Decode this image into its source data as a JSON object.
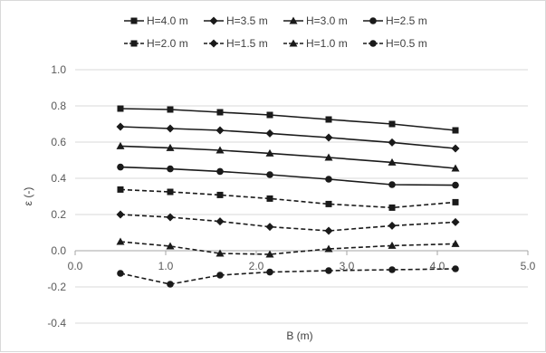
{
  "chart_data": {
    "type": "line",
    "title": "",
    "xlabel": "B (m)",
    "ylabel": "ε (-)",
    "xlim": [
      0,
      5
    ],
    "ylim": [
      -0.4,
      1.0
    ],
    "xticks": [
      0,
      1,
      2,
      3,
      4,
      5
    ],
    "xtick_labels": [
      "0.0",
      "1.0",
      "2.0",
      "3.0",
      "4.0",
      "5.0"
    ],
    "yticks": [
      -0.4,
      -0.2,
      0.0,
      0.2,
      0.4,
      0.6,
      0.8,
      1.0
    ],
    "ytick_labels": [
      "-0.4",
      "-0.2",
      "0.0",
      "0.2",
      "0.4",
      "0.6",
      "0.8",
      "1.0"
    ],
    "grid": true,
    "legend": "top",
    "x": [
      0.5,
      1.05,
      1.6,
      2.15,
      2.8,
      3.5,
      4.2
    ],
    "series": [
      {
        "name": "H=4.0 m",
        "marker": "square",
        "dash": "solid",
        "values": [
          0.785,
          0.78,
          0.765,
          0.75,
          0.725,
          0.7,
          0.665
        ]
      },
      {
        "name": "H=3.5 m",
        "marker": "diamond",
        "dash": "solid",
        "values": [
          0.685,
          0.675,
          0.665,
          0.648,
          0.625,
          0.598,
          0.565
        ]
      },
      {
        "name": "H=3.0 m",
        "marker": "triangle",
        "dash": "solid",
        "values": [
          0.578,
          0.568,
          0.555,
          0.538,
          0.515,
          0.488,
          0.455
        ]
      },
      {
        "name": "H=2.5 m",
        "marker": "circle",
        "dash": "solid",
        "values": [
          0.462,
          0.452,
          0.438,
          0.42,
          0.395,
          0.365,
          0.362
        ]
      },
      {
        "name": "H=2.0 m",
        "marker": "square",
        "dash": "dashed",
        "values": [
          0.338,
          0.325,
          0.308,
          0.288,
          0.258,
          0.238,
          0.268
        ]
      },
      {
        "name": "H=1.5 m",
        "marker": "diamond",
        "dash": "dashed",
        "values": [
          0.2,
          0.185,
          0.162,
          0.132,
          0.11,
          0.138,
          0.158
        ]
      },
      {
        "name": "H=1.0 m",
        "marker": "triangle",
        "dash": "dashed",
        "values": [
          0.05,
          0.025,
          -0.015,
          -0.02,
          0.01,
          0.028,
          0.038
        ]
      },
      {
        "name": "H=0.5 m",
        "marker": "circle",
        "dash": "dashed",
        "values": [
          -0.125,
          -0.185,
          -0.135,
          -0.118,
          -0.11,
          -0.105,
          -0.1
        ]
      }
    ]
  }
}
